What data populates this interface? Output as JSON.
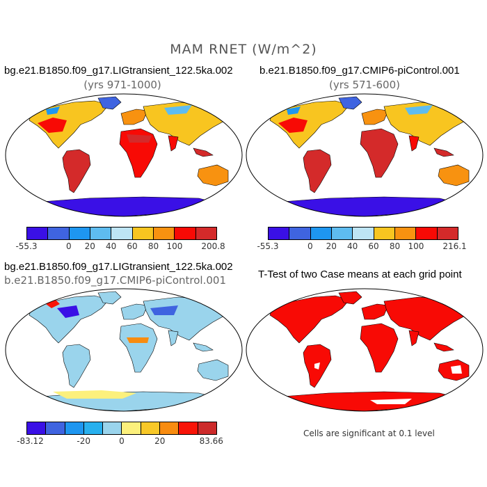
{
  "figure": {
    "title": "MAM RNET (W/m^2)"
  },
  "colors": {
    "c1": [
      "#3a10e6",
      "#3f64e0",
      "#1e96f0",
      "#5ebcf0",
      "#bde4f4",
      "#f8c520",
      "#f89210",
      "#f80a05",
      "#d42a2a"
    ],
    "c3": [
      "#3a10e6",
      "#3f64e0",
      "#1e96f0",
      "#28b0ee",
      "#9ad4ec",
      "#fcf07c",
      "#f8c828",
      "#f88c10",
      "#f81408",
      "#cc2a2a"
    ],
    "ocean": "#ffffff",
    "ttest": "#f80a05"
  },
  "panels": [
    {
      "title": "bg.e21.B1850.f09_g17.LIGtransient_122.5ka.002",
      "subtitle": "(yrs 971-1000)",
      "colorbar": {
        "labels": [
          "-55.3",
          "0",
          "20",
          "40",
          "60",
          "80",
          "100",
          "200.8"
        ]
      }
    },
    {
      "title": "b.e21.B1850.f09_g17.CMIP6-piControl.001",
      "subtitle": "(yrs 571-600)",
      "colorbar": {
        "labels": [
          "-55.3",
          "0",
          "20",
          "40",
          "60",
          "80",
          "100",
          "216.1"
        ]
      }
    },
    {
      "title": "bg.e21.B1850.f09_g17.LIGtransient_122.5ka.002",
      "subtitle": "b.e21.B1850.f09_g17.CMIP6-piControl.001",
      "colorbar": {
        "labels": [
          "-83.12",
          "-20",
          "0",
          "20",
          "83.66"
        ]
      }
    },
    {
      "title": "T-Test of two Case means at each grid point",
      "note": "Cells are significant at 0.1 level"
    }
  ]
}
